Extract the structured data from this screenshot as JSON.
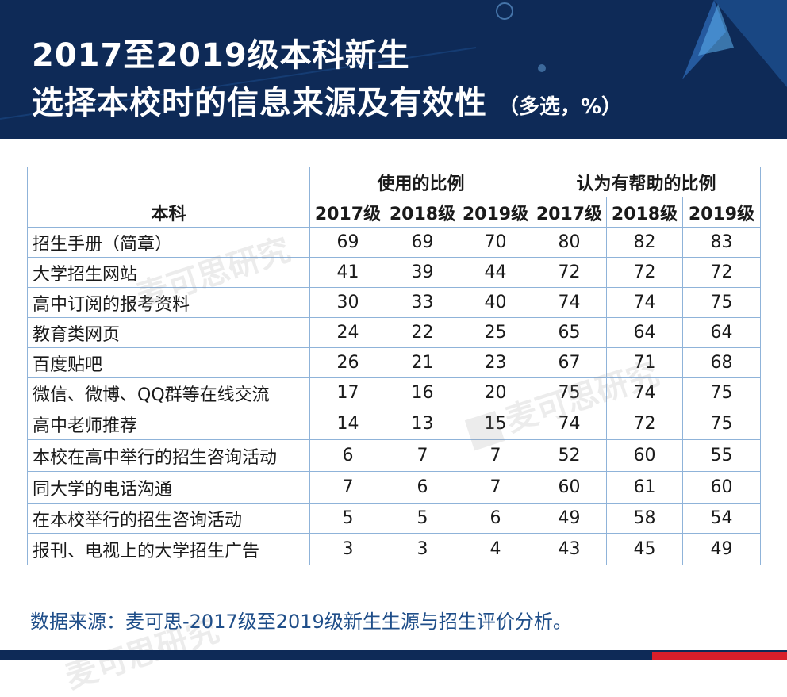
{
  "header": {
    "title_line1": "2017至2019级本科新生",
    "title_line2": "选择本校时的信息来源及有效性",
    "title_note": "（多选，%）"
  },
  "colors": {
    "header_bg": "#0e2a57",
    "border": "#8fb3d9",
    "source_text": "#1f4e89",
    "bottom_accent": "#d91e2a"
  },
  "chart_data": {
    "type": "table",
    "row_header_label": "本科",
    "group_headers": [
      "使用的比例",
      "认为有帮助的比例"
    ],
    "year_headers": [
      "2017级",
      "2018级",
      "2019级",
      "2017级",
      "2018级",
      "2019级"
    ],
    "rows": [
      {
        "label": "招生手册（简章）",
        "values": [
          "69",
          "69",
          "70",
          "80",
          "82",
          "83"
        ]
      },
      {
        "label": "大学招生网站",
        "values": [
          "41",
          "39",
          "44",
          "72",
          "72",
          "72"
        ]
      },
      {
        "label": "高中订阅的报考资料",
        "values": [
          "30",
          "33",
          "40",
          "74",
          "74",
          "75"
        ]
      },
      {
        "label": "教育类网页",
        "values": [
          "24",
          "22",
          "25",
          "65",
          "64",
          "64"
        ]
      },
      {
        "label": "百度贴吧",
        "values": [
          "26",
          "21",
          "23",
          "67",
          "71",
          "68"
        ]
      },
      {
        "label": "微信、微博、QQ群等在线交流",
        "values": [
          "17",
          "16",
          "20",
          "75",
          "74",
          "75"
        ]
      },
      {
        "label": "高中老师推荐",
        "values": [
          "14",
          "13",
          "15",
          "74",
          "72",
          "75"
        ]
      },
      {
        "label": "本校在高中举行的招生咨询活动",
        "values": [
          "6",
          "7",
          "7",
          "52",
          "60",
          "55"
        ]
      },
      {
        "label": "同大学的电话沟通",
        "values": [
          "7",
          "6",
          "7",
          "60",
          "61",
          "60"
        ]
      },
      {
        "label": "在本校举行的招生咨询活动",
        "values": [
          "5",
          "5",
          "6",
          "49",
          "58",
          "54"
        ]
      },
      {
        "label": "报刊、电视上的大学招生广告",
        "values": [
          "3",
          "3",
          "4",
          "43",
          "45",
          "49"
        ]
      }
    ]
  },
  "source": {
    "text": "数据来源：麦可思-2017级至2019级新生生源与招生评价分析。"
  },
  "watermark": {
    "text": "麦可思研究"
  }
}
